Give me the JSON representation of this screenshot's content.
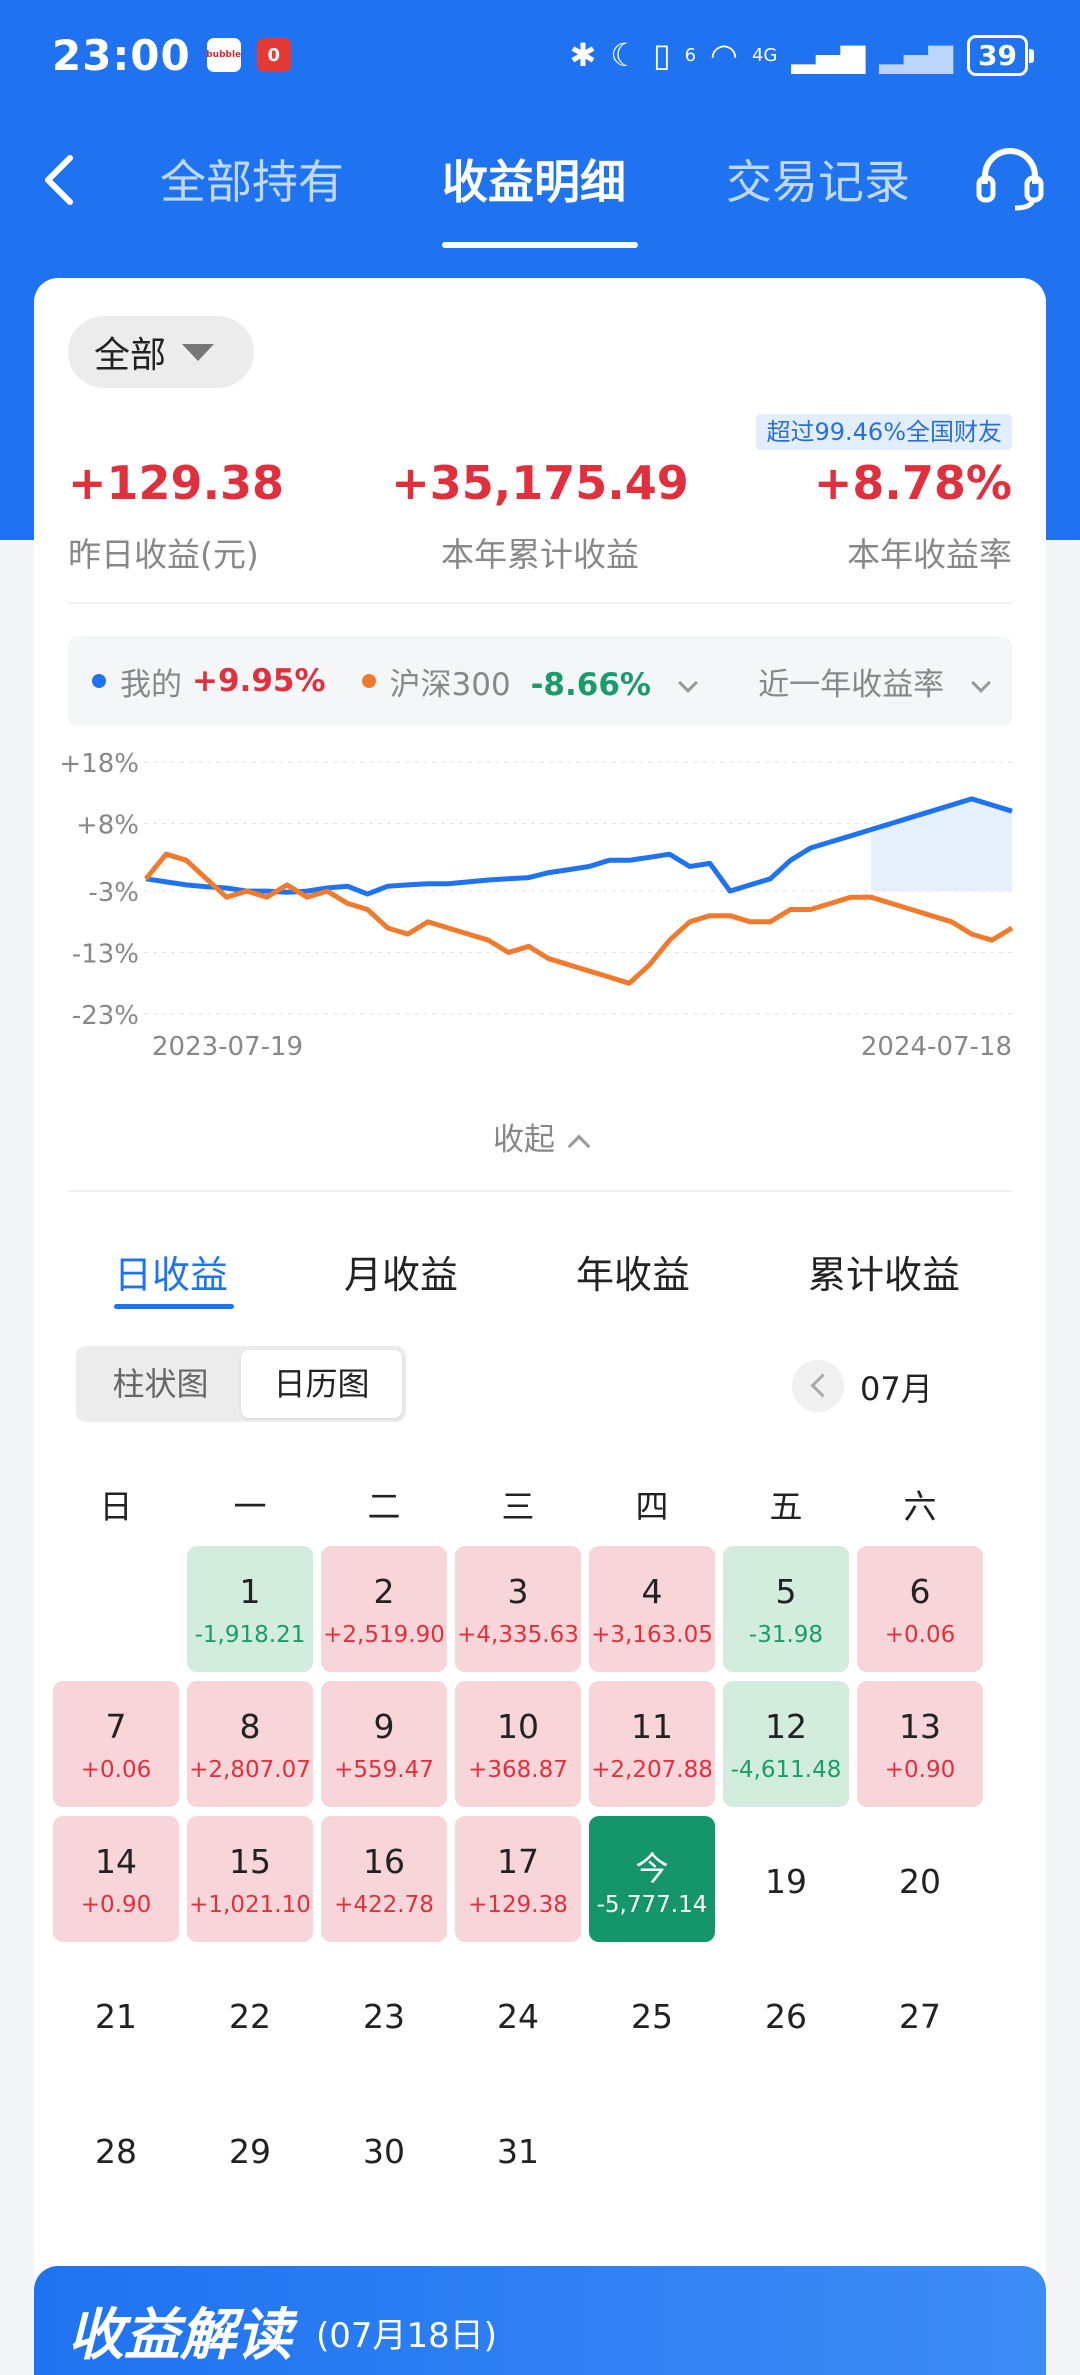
{
  "status_bar": {
    "time": "23:00",
    "app_badge_1": "bubble",
    "app_badge_2": "0",
    "signal_1": "6",
    "signal_2": "4G",
    "battery": "39",
    "icons": [
      "bluetooth-icon",
      "moon-icon",
      "vibrate-icon",
      "wifi-icon",
      "signal-icon",
      "signal-icon",
      "battery-icon"
    ]
  },
  "nav": {
    "back_icon": "chevron-left-icon",
    "tabs": [
      "全部持有",
      "收益明细",
      "交易记录"
    ],
    "active_tab": 1,
    "service_icon": "headset-icon"
  },
  "summary": {
    "filter": "全部",
    "rank_badge": "超过99.46%全国财友",
    "items": [
      {
        "value": "+129.38",
        "label": "昨日收益(元)"
      },
      {
        "value": "+35,175.49",
        "label": "本年累计收益"
      },
      {
        "value": "+8.78%",
        "label": "本年收益率"
      }
    ]
  },
  "legend": {
    "mine_label": "我的",
    "mine_value": "+9.95%",
    "bench_label": "沪深300",
    "bench_value": "-8.66%",
    "period": "近一年收益率"
  },
  "colors": {
    "accent": "#1f73f0",
    "gain": "#e0303d",
    "loss": "#1a9c6a",
    "mine_line": "#1f73f0",
    "bench_line": "#f07a2e"
  },
  "chart_data": {
    "type": "line",
    "x_start_label": "2023-07-19",
    "x_end_label": "2024-07-18",
    "yticks": [
      "+18%",
      "+8%",
      "-3%",
      "-13%",
      "-23%"
    ],
    "ylim": [
      -23,
      18
    ],
    "grid": true,
    "series": [
      {
        "name": "我的",
        "values": [
          -1,
          -1.5,
          -2,
          -2.3,
          -2.5,
          -3,
          -3,
          -3.2,
          -3,
          -2.5,
          -2.2,
          -3.5,
          -2.2,
          -2,
          -1.8,
          -1.8,
          -1.5,
          -1.2,
          -1,
          -0.8,
          0,
          0.5,
          1,
          2,
          2,
          2.5,
          3,
          1,
          1.5,
          -3,
          -2,
          -1,
          2,
          4,
          5,
          6,
          7,
          8,
          9,
          10,
          11,
          12,
          11,
          10
        ]
      },
      {
        "name": "沪深300",
        "values": [
          -1,
          3,
          2,
          -1,
          -4,
          -3,
          -4,
          -2,
          -4,
          -3,
          -5,
          -6,
          -9,
          -10,
          -8,
          -9,
          -10,
          -11,
          -13,
          -12,
          -14,
          -15,
          -16,
          -17,
          -18,
          -15,
          -11,
          -8,
          -7,
          -7,
          -8,
          -8,
          -6,
          -6,
          -5,
          -4,
          -4,
          -5,
          -6,
          -7,
          -8,
          -10,
          -11,
          -9
        ]
      }
    ]
  },
  "collapse_label": "收起",
  "period_tabs": [
    "日收益",
    "月收益",
    "年收益",
    "累计收益"
  ],
  "active_period_tab": 0,
  "view_toggle": [
    "柱状图",
    "日历图"
  ],
  "active_view": 1,
  "month": "07月",
  "weekdays": [
    "日",
    "一",
    "二",
    "三",
    "四",
    "五",
    "六"
  ],
  "calendar": [
    {
      "day": "1",
      "value": "-1,918.21",
      "type": "neg",
      "col": 1,
      "row": 0
    },
    {
      "day": "2",
      "value": "+2,519.90",
      "type": "pos",
      "col": 2,
      "row": 0
    },
    {
      "day": "3",
      "value": "+4,335.63",
      "type": "pos",
      "col": 3,
      "row": 0
    },
    {
      "day": "4",
      "value": "+3,163.05",
      "type": "pos",
      "col": 4,
      "row": 0
    },
    {
      "day": "5",
      "value": "-31.98",
      "type": "neg",
      "col": 5,
      "row": 0
    },
    {
      "day": "6",
      "value": "+0.06",
      "type": "pos",
      "col": 6,
      "row": 0
    },
    {
      "day": "7",
      "value": "+0.06",
      "type": "pos",
      "col": 0,
      "row": 1
    },
    {
      "day": "8",
      "value": "+2,807.07",
      "type": "pos",
      "col": 1,
      "row": 1
    },
    {
      "day": "9",
      "value": "+559.47",
      "type": "pos",
      "col": 2,
      "row": 1
    },
    {
      "day": "10",
      "value": "+368.87",
      "type": "pos",
      "col": 3,
      "row": 1
    },
    {
      "day": "11",
      "value": "+2,207.88",
      "type": "pos",
      "col": 4,
      "row": 1
    },
    {
      "day": "12",
      "value": "-4,611.48",
      "type": "neg",
      "col": 5,
      "row": 1
    },
    {
      "day": "13",
      "value": "+0.90",
      "type": "pos",
      "col": 6,
      "row": 1
    },
    {
      "day": "14",
      "value": "+0.90",
      "type": "pos",
      "col": 0,
      "row": 2
    },
    {
      "day": "15",
      "value": "+1,021.10",
      "type": "pos",
      "col": 1,
      "row": 2
    },
    {
      "day": "16",
      "value": "+422.78",
      "type": "pos",
      "col": 2,
      "row": 2
    },
    {
      "day": "17",
      "value": "+129.38",
      "type": "pos",
      "col": 3,
      "row": 2
    },
    {
      "day": "今",
      "value": "-5,777.14",
      "type": "today",
      "col": 4,
      "row": 2
    },
    {
      "day": "19",
      "value": "",
      "type": "plain",
      "col": 5,
      "row": 2
    },
    {
      "day": "20",
      "value": "",
      "type": "plain",
      "col": 6,
      "row": 2
    },
    {
      "day": "21",
      "value": "",
      "type": "plain",
      "col": 0,
      "row": 3
    },
    {
      "day": "22",
      "value": "",
      "type": "plain",
      "col": 1,
      "row": 3
    },
    {
      "day": "23",
      "value": "",
      "type": "plain",
      "col": 2,
      "row": 3
    },
    {
      "day": "24",
      "value": "",
      "type": "plain",
      "col": 3,
      "row": 3
    },
    {
      "day": "25",
      "value": "",
      "type": "plain",
      "col": 4,
      "row": 3
    },
    {
      "day": "26",
      "value": "",
      "type": "plain",
      "col": 5,
      "row": 3
    },
    {
      "day": "27",
      "value": "",
      "type": "plain",
      "col": 6,
      "row": 3
    },
    {
      "day": "28",
      "value": "",
      "type": "plain",
      "col": 0,
      "row": 4
    },
    {
      "day": "29",
      "value": "",
      "type": "plain",
      "col": 1,
      "row": 4
    },
    {
      "day": "30",
      "value": "",
      "type": "plain",
      "col": 2,
      "row": 4
    },
    {
      "day": "31",
      "value": "",
      "type": "plain",
      "col": 3,
      "row": 4
    }
  ],
  "banner": {
    "title": "收益解读",
    "date": "(07月18日)"
  }
}
